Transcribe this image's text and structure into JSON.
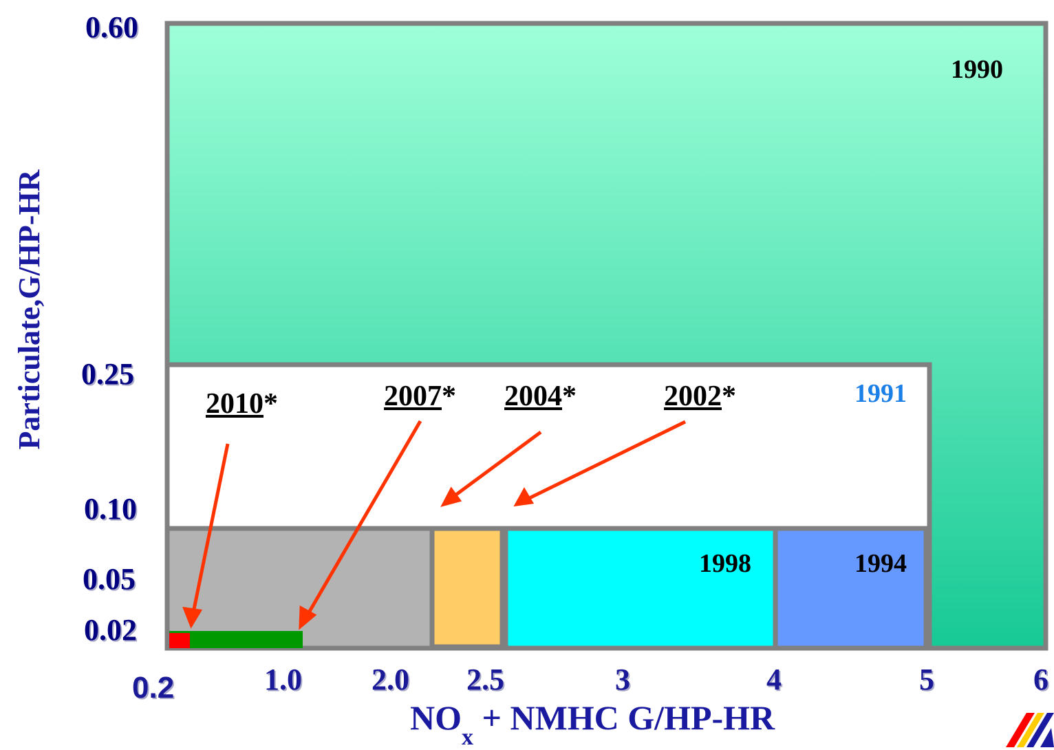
{
  "chart_data": {
    "type": "area",
    "ylabel": "Particulate,G/HP-HR",
    "xlabel_main": "NO",
    "xlabel_sub": "x",
    "xlabel_rest": " + NMHC G/HP-HR",
    "y_ticks": [
      "0.60",
      "0.25",
      "0.10",
      "0.05",
      "0.02"
    ],
    "x_ticks": [
      "0.2",
      "1.0",
      "2.0",
      "2.5",
      "3",
      "4",
      "5",
      "6"
    ],
    "regions": [
      {
        "year": "1990",
        "nox_nmhc": 6.0,
        "pm": 0.6,
        "color": "#1fcf99"
      },
      {
        "year": "1991",
        "nox_nmhc": 5.0,
        "pm": 0.25,
        "color": "#ffffff"
      },
      {
        "year": "1994",
        "nox_nmhc": 5.0,
        "pm": 0.1,
        "color": "#6699ff"
      },
      {
        "year": "1998",
        "nox_nmhc": 4.0,
        "pm": 0.1,
        "color": "#00ffff"
      },
      {
        "year": "2002",
        "nox_nmhc": 2.5,
        "pm": 0.1,
        "color": "#ffcc66"
      },
      {
        "year": "2004",
        "nox_nmhc": 2.5,
        "pm": 0.1,
        "color": "#ffcc66"
      },
      {
        "year": "2007",
        "nox_nmhc": 1.0,
        "pm": 0.02,
        "color": "#009900"
      },
      {
        "year": "2010",
        "nox_nmhc": 0.2,
        "pm": 0.02,
        "color": "#ff0000"
      }
    ],
    "labels": {
      "1990": "1990",
      "1991": "1991",
      "1994": "1994",
      "1998": "1998",
      "2002": "2002",
      "2004": "2004",
      "2007": "2007",
      "2010": "2010",
      "asterisk": "*"
    },
    "colors": {
      "year_1991": "#1a7fe6",
      "arrow": "#ff3300",
      "frame": "#808080",
      "gray_region": "#b3b3b3"
    }
  }
}
